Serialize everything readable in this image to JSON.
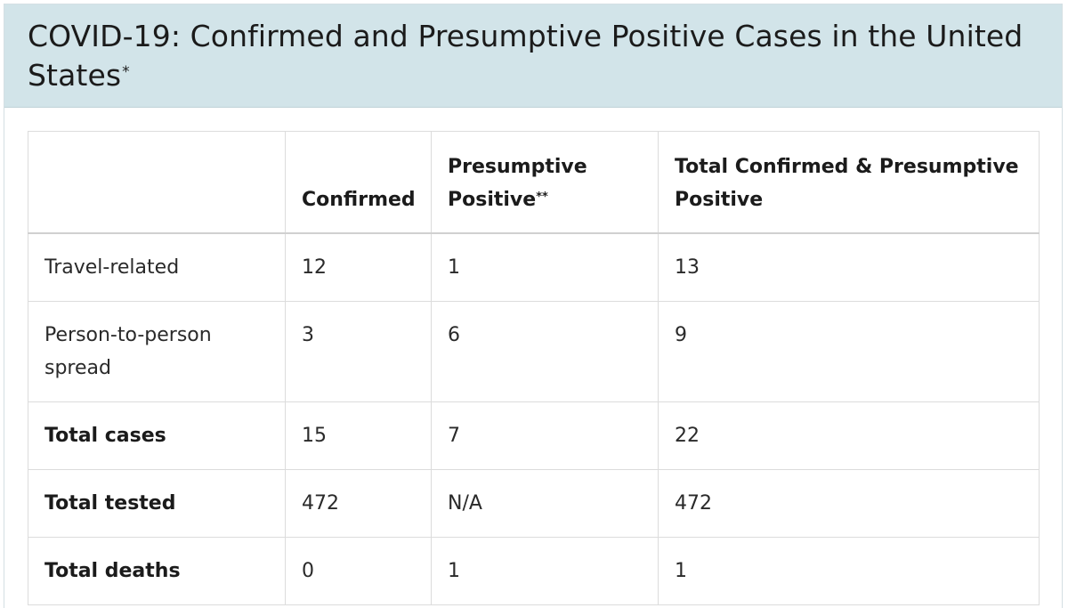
{
  "header": {
    "title": "COVID-19: Confirmed and Presumptive Positive Cases in the United States",
    "title_footnote_mark": "*"
  },
  "table": {
    "columns": [
      {
        "label": "",
        "footnote": ""
      },
      {
        "label": "Confirmed",
        "footnote": ""
      },
      {
        "label": "Presumptive Positive",
        "footnote": "**"
      },
      {
        "label": "Total Confirmed & Presumptive Positive",
        "footnote": ""
      }
    ],
    "rows": [
      {
        "label": "Travel-related",
        "bold": false,
        "confirmed": "12",
        "presumptive": "1",
        "total": "13"
      },
      {
        "label": "Person-to-person spread",
        "bold": false,
        "confirmed": "3",
        "presumptive": "6",
        "total": "9"
      },
      {
        "label": "Total cases",
        "bold": true,
        "confirmed": "15",
        "presumptive": "7",
        "total": "22"
      },
      {
        "label": "Total tested",
        "bold": true,
        "confirmed": "472",
        "presumptive": "N/A",
        "total": "472"
      },
      {
        "label": "Total deaths",
        "bold": true,
        "confirmed": "0",
        "presumptive": "1",
        "total": "1"
      }
    ]
  },
  "colors": {
    "header_background": "#d2e4e9",
    "border": "#dcdcdc",
    "text": "#1b1b1b"
  }
}
